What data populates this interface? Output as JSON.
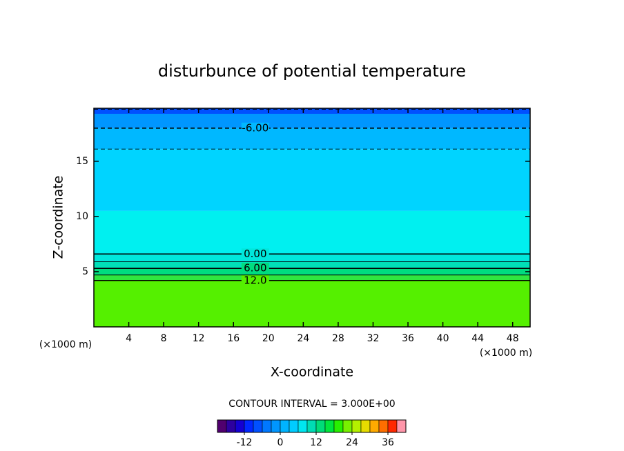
{
  "chart_data": {
    "type": "contour",
    "title": "disturbunce of potential temperature",
    "x_label": "X-coordinate",
    "y_label": "Z-coordinate",
    "x_unit": "(×1000 m)",
    "y_unit": "(×1000 m)",
    "xlim": [
      0,
      50
    ],
    "xticks": [
      4,
      8,
      12,
      16,
      20,
      24,
      28,
      32,
      36,
      40,
      44,
      48
    ],
    "ylim": [
      0,
      19.8
    ],
    "yticks": [
      5,
      10,
      15
    ],
    "bands": [
      {
        "top": 4.2,
        "color": "#55f000"
      },
      {
        "top": 4.7,
        "color": "#30e640"
      },
      {
        "top": 5.3,
        "color": "#00dc80"
      },
      {
        "top": 5.9,
        "color": "#00e0b8"
      },
      {
        "top": 6.6,
        "color": "#00e8dc"
      },
      {
        "top": 10.5,
        "color": "#00f0f0"
      },
      {
        "top": 16.1,
        "color": "#00d4ff"
      },
      {
        "top": 18,
        "color": "#00b8ff"
      },
      {
        "top": 19.3,
        "color": "#0096ff"
      },
      {
        "top": 19.8,
        "color": "#0050ff"
      }
    ],
    "contours": [
      {
        "z": 4.2,
        "label": "12.0"
      },
      {
        "z": 4.7
      },
      {
        "z": 5.3,
        "label": "6.00"
      },
      {
        "z": 5.9
      },
      {
        "z": 6.6,
        "label": "0.00"
      },
      {
        "z": 16.1,
        "dashed": true
      },
      {
        "z": 18,
        "dashed": true,
        "label": "-6.00"
      },
      {
        "z": 19.7,
        "dashed": true
      }
    ],
    "contour_interval": "CONTOUR INTERVAL = 3.000E+00",
    "colorbar": {
      "lim": [
        -21,
        42
      ],
      "ticks": [
        -12,
        0,
        12,
        24,
        36
      ],
      "colors": [
        "#50006e",
        "#2d00a0",
        "#1400d2",
        "#0028ff",
        "#0050ff",
        "#0078ff",
        "#0096ff",
        "#00b4ff",
        "#00ccff",
        "#00e6f0",
        "#00dcb4",
        "#00dc78",
        "#00e63c",
        "#28f000",
        "#78f000",
        "#b4f000",
        "#e6dc00",
        "#ffaa00",
        "#ff6e00",
        "#ff2800",
        "#ff96aa"
      ]
    }
  }
}
